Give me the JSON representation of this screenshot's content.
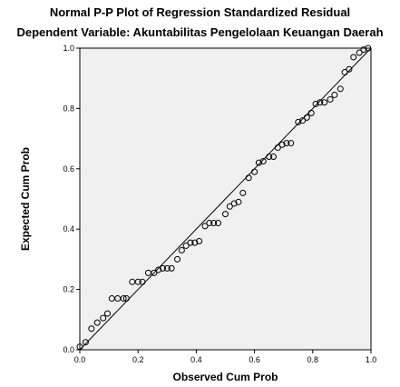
{
  "chart_data": {
    "type": "scatter",
    "title": "Normal P-P Plot of Regression Standardized Residual",
    "subtitle": "Dependent Variable: Akuntabilitas Pengelolaan Keuangan Daerah",
    "xlabel": "Observed Cum Prob",
    "ylabel": "Expected Cum Prob",
    "xlim": [
      0,
      1
    ],
    "ylim": [
      0,
      1
    ],
    "x_ticks": [
      "0.0",
      "0.2",
      "0.4",
      "0.6",
      "0.8",
      "1.0"
    ],
    "y_ticks": [
      "0.0",
      "0.2",
      "0.4",
      "0.6",
      "0.8",
      "1.0"
    ],
    "reference_line": [
      [
        0,
        0
      ],
      [
        1,
        1
      ]
    ],
    "grid": false,
    "plot_background": "#f0f0f0",
    "points": [
      [
        0.0,
        0.01
      ],
      [
        0.02,
        0.025
      ],
      [
        0.04,
        0.07
      ],
      [
        0.06,
        0.09
      ],
      [
        0.08,
        0.105
      ],
      [
        0.095,
        0.12
      ],
      [
        0.11,
        0.17
      ],
      [
        0.13,
        0.17
      ],
      [
        0.15,
        0.17
      ],
      [
        0.16,
        0.17
      ],
      [
        0.18,
        0.225
      ],
      [
        0.2,
        0.225
      ],
      [
        0.215,
        0.225
      ],
      [
        0.235,
        0.255
      ],
      [
        0.255,
        0.255
      ],
      [
        0.27,
        0.265
      ],
      [
        0.285,
        0.27
      ],
      [
        0.3,
        0.27
      ],
      [
        0.315,
        0.27
      ],
      [
        0.335,
        0.3
      ],
      [
        0.35,
        0.33
      ],
      [
        0.365,
        0.345
      ],
      [
        0.38,
        0.355
      ],
      [
        0.395,
        0.355
      ],
      [
        0.41,
        0.36
      ],
      [
        0.43,
        0.41
      ],
      [
        0.445,
        0.42
      ],
      [
        0.46,
        0.42
      ],
      [
        0.475,
        0.42
      ],
      [
        0.5,
        0.45
      ],
      [
        0.515,
        0.475
      ],
      [
        0.53,
        0.485
      ],
      [
        0.545,
        0.49
      ],
      [
        0.56,
        0.52
      ],
      [
        0.58,
        0.57
      ],
      [
        0.6,
        0.59
      ],
      [
        0.615,
        0.62
      ],
      [
        0.63,
        0.625
      ],
      [
        0.65,
        0.64
      ],
      [
        0.665,
        0.64
      ],
      [
        0.68,
        0.67
      ],
      [
        0.695,
        0.68
      ],
      [
        0.71,
        0.685
      ],
      [
        0.725,
        0.685
      ],
      [
        0.75,
        0.755
      ],
      [
        0.765,
        0.76
      ],
      [
        0.78,
        0.77
      ],
      [
        0.795,
        0.785
      ],
      [
        0.81,
        0.815
      ],
      [
        0.825,
        0.82
      ],
      [
        0.84,
        0.82
      ],
      [
        0.86,
        0.83
      ],
      [
        0.875,
        0.845
      ],
      [
        0.895,
        0.865
      ],
      [
        0.91,
        0.92
      ],
      [
        0.925,
        0.93
      ],
      [
        0.94,
        0.97
      ],
      [
        0.96,
        0.985
      ],
      [
        0.975,
        0.995
      ],
      [
        0.99,
        1.0
      ]
    ]
  }
}
